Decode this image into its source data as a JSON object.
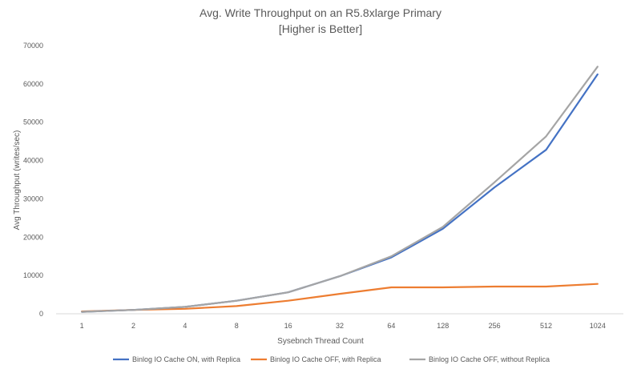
{
  "chart_data": {
    "type": "line",
    "title": [
      "Avg. Write Throughput on an R5.8xlarge Primary",
      "[Higher is Better]"
    ],
    "xlabel": "Sysebnch Thread Count",
    "ylabel": "Avg Throughput (writes/sec)",
    "categories": [
      "1",
      "2",
      "4",
      "8",
      "16",
      "32",
      "64",
      "128",
      "256",
      "512",
      "1024"
    ],
    "ylim": [
      0,
      70000
    ],
    "yticks": [
      0,
      10000,
      20000,
      30000,
      40000,
      50000,
      60000,
      70000
    ],
    "grid": false,
    "legend_position": "bottom",
    "series": [
      {
        "name": "Binlog IO Cache ON, with Replica",
        "color": "#4472C4",
        "values": [
          500,
          1000,
          1800,
          3400,
          5600,
          9800,
          14700,
          22200,
          33000,
          42800,
          62500
        ]
      },
      {
        "name": "Binlog IO Cache OFF, with Replica",
        "color": "#ED7D31",
        "values": [
          600,
          1000,
          1300,
          2000,
          3400,
          5200,
          6900,
          6900,
          7100,
          7100,
          7800
        ]
      },
      {
        "name": "Binlog IO Cache OFF, without Replica",
        "color": "#A5A5A5",
        "values": [
          500,
          1000,
          1800,
          3400,
          5600,
          9800,
          15000,
          22700,
          34300,
          46300,
          64500
        ]
      }
    ]
  }
}
